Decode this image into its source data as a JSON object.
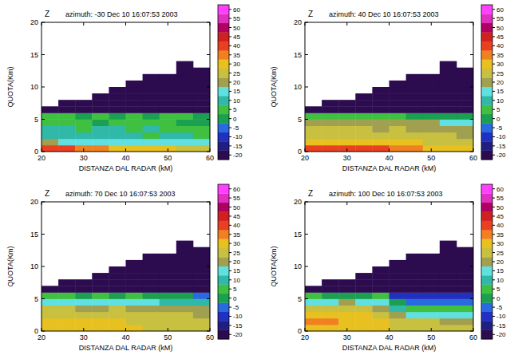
{
  "chart_data": [
    {
      "type": "heatmap",
      "annotation": "Z",
      "title": "azimuth: -30 Dec 10 16:07:53 2003",
      "x_label": "DISTANZA DAL RADAR (kM)",
      "y_label": "QUOTA(Km)",
      "xlim": [
        20,
        60
      ],
      "ylim": [
        0,
        20
      ],
      "xticks": [
        20,
        30,
        40,
        50,
        60
      ],
      "yticks": [
        0,
        5,
        10,
        15,
        20
      ],
      "x": [
        22,
        26,
        30,
        34,
        38,
        42,
        46,
        50,
        54,
        58
      ],
      "y": [
        0.5,
        1.5,
        2.5,
        3.5,
        4.5,
        5.5,
        6.5,
        7.5,
        8.5,
        9.5,
        10.5,
        11.5,
        12.5,
        13.5
      ],
      "cells": [
        [
          40,
          40,
          35,
          35,
          30,
          30,
          30,
          30,
          25,
          25
        ],
        [
          20,
          18,
          15,
          15,
          15,
          15,
          15,
          15,
          15,
          15
        ],
        [
          10,
          10,
          10,
          10,
          10,
          10,
          5,
          10,
          10,
          5
        ],
        [
          10,
          10,
          5,
          10,
          10,
          5,
          10,
          5,
          5,
          5
        ],
        [
          5,
          5,
          5,
          0,
          5,
          5,
          5,
          5,
          0,
          0
        ],
        [
          5,
          5,
          0,
          5,
          0,
          5,
          0,
          5,
          5,
          0
        ],
        [
          -20,
          -20,
          -20,
          -20,
          -20,
          -20,
          -20,
          -20,
          -20,
          -20
        ],
        [
          null,
          -20,
          -20,
          -20,
          -20,
          -20,
          -20,
          -20,
          -20,
          -20
        ],
        [
          null,
          null,
          null,
          -20,
          -20,
          -20,
          -20,
          -20,
          -20,
          -20
        ],
        [
          null,
          null,
          null,
          null,
          -20,
          -20,
          -20,
          -20,
          -20,
          -20
        ],
        [
          null,
          null,
          null,
          null,
          null,
          -20,
          -20,
          -20,
          -20,
          -20
        ],
        [
          null,
          null,
          null,
          null,
          null,
          null,
          -20,
          -20,
          -20,
          -20
        ],
        [
          null,
          null,
          null,
          null,
          null,
          null,
          null,
          null,
          -20,
          -20
        ],
        [
          null,
          null,
          null,
          null,
          null,
          null,
          null,
          null,
          -20,
          null
        ]
      ],
      "colorbar_range": [
        -22.5,
        62.5
      ],
      "colorbar_ticks": [
        -20,
        -15,
        -10,
        -5,
        0,
        5,
        10,
        15,
        20,
        25,
        30,
        35,
        40,
        45,
        50,
        55,
        60
      ]
    },
    {
      "type": "heatmap",
      "annotation": "Z",
      "title": "azimuth: 40 Dec 10 16:07:53 2003",
      "x_label": "DISTANZA DAL RADAR (kM)",
      "y_label": "QUOTA(Km)",
      "xlim": [
        20,
        60
      ],
      "ylim": [
        0,
        20
      ],
      "xticks": [
        20,
        30,
        40,
        50,
        60
      ],
      "yticks": [
        0,
        5,
        10,
        15,
        20
      ],
      "x": [
        22,
        26,
        30,
        34,
        38,
        42,
        46,
        50,
        54,
        58
      ],
      "y": [
        0.5,
        1.5,
        2.5,
        3.5,
        4.5,
        5.5,
        6.5,
        7.5,
        8.5,
        9.5,
        10.5,
        11.5,
        12.5,
        13.5
      ],
      "cells": [
        [
          40,
          40,
          40,
          40,
          40,
          35,
          35,
          30,
          30,
          30
        ],
        [
          30,
          30,
          30,
          30,
          30,
          30,
          30,
          25,
          25,
          25
        ],
        [
          25,
          25,
          25,
          25,
          25,
          25,
          25,
          25,
          25,
          20
        ],
        [
          25,
          25,
          25,
          25,
          20,
          25,
          20,
          20,
          20,
          20
        ],
        [
          20,
          20,
          20,
          20,
          20,
          20,
          20,
          20,
          15,
          15
        ],
        [
          5,
          5,
          5,
          5,
          5,
          5,
          0,
          0,
          0,
          0
        ],
        [
          -20,
          -20,
          -20,
          -20,
          -20,
          -20,
          -20,
          -20,
          -20,
          -20
        ],
        [
          null,
          -20,
          -20,
          -20,
          -20,
          -20,
          -20,
          -20,
          -20,
          -20
        ],
        [
          null,
          null,
          null,
          -20,
          -20,
          -20,
          -20,
          -20,
          -20,
          -20
        ],
        [
          null,
          null,
          null,
          null,
          -20,
          -20,
          -20,
          -20,
          -20,
          -20
        ],
        [
          null,
          null,
          null,
          null,
          null,
          -20,
          -20,
          -20,
          -20,
          -20
        ],
        [
          null,
          null,
          null,
          null,
          null,
          null,
          -20,
          -20,
          -20,
          -20
        ],
        [
          null,
          null,
          null,
          null,
          null,
          null,
          null,
          null,
          -20,
          -20
        ],
        [
          null,
          null,
          null,
          null,
          null,
          null,
          null,
          null,
          -20,
          null
        ]
      ],
      "colorbar_range": [
        -22.5,
        62.5
      ],
      "colorbar_ticks": [
        -20,
        -15,
        -10,
        -5,
        0,
        5,
        10,
        15,
        20,
        25,
        30,
        35,
        40,
        45,
        50,
        55,
        60
      ]
    },
    {
      "type": "heatmap",
      "annotation": "Z",
      "title": "azimuth: 70 Dec 10 16:07:53 2003",
      "x_label": "DISTANZA DAL RADAR (kM)",
      "y_label": "QUOTA(Km)",
      "xlim": [
        20,
        60
      ],
      "ylim": [
        0,
        20
      ],
      "xticks": [
        20,
        30,
        40,
        50,
        60
      ],
      "yticks": [
        0,
        5,
        10,
        15,
        20
      ],
      "x": [
        22,
        26,
        30,
        34,
        38,
        42,
        46,
        50,
        54,
        58
      ],
      "y": [
        0.5,
        1.5,
        2.5,
        3.5,
        4.5,
        5.5,
        6.5,
        7.5,
        8.5,
        9.5,
        10.5,
        11.5,
        12.5,
        13.5
      ],
      "cells": [
        [
          30,
          30,
          30,
          30,
          30,
          30,
          25,
          25,
          25,
          25
        ],
        [
          30,
          30,
          30,
          30,
          30,
          25,
          25,
          25,
          25,
          25
        ],
        [
          25,
          25,
          25,
          25,
          25,
          25,
          25,
          25,
          25,
          20
        ],
        [
          25,
          25,
          20,
          20,
          25,
          20,
          20,
          20,
          20,
          20
        ],
        [
          15,
          15,
          15,
          15,
          15,
          15,
          15,
          10,
          10,
          10
        ],
        [
          5,
          5,
          0,
          5,
          0,
          5,
          0,
          0,
          0,
          -5
        ],
        [
          -20,
          -20,
          -20,
          -20,
          -20,
          -20,
          -20,
          -20,
          -20,
          -20
        ],
        [
          null,
          -20,
          -20,
          -20,
          -20,
          -20,
          -20,
          -20,
          -20,
          -20
        ],
        [
          null,
          null,
          null,
          -20,
          -20,
          -20,
          -20,
          -20,
          -20,
          -20
        ],
        [
          null,
          null,
          null,
          null,
          -20,
          -20,
          -20,
          -20,
          -20,
          -20
        ],
        [
          null,
          null,
          null,
          null,
          null,
          -20,
          -20,
          -20,
          -20,
          -20
        ],
        [
          null,
          null,
          null,
          null,
          null,
          null,
          -20,
          -20,
          -20,
          -20
        ],
        [
          null,
          null,
          null,
          null,
          null,
          null,
          null,
          null,
          -20,
          -20
        ],
        [
          null,
          null,
          null,
          null,
          null,
          null,
          null,
          null,
          -20,
          null
        ]
      ],
      "colorbar_range": [
        -22.5,
        62.5
      ],
      "colorbar_ticks": [
        -20,
        -15,
        -10,
        -5,
        0,
        5,
        10,
        15,
        20,
        25,
        30,
        35,
        40,
        45,
        50,
        55,
        60
      ]
    },
    {
      "type": "heatmap",
      "annotation": "Z",
      "title": "azimuth: 100 Dec 10 16:07:53 2003",
      "x_label": "DISTANZA DAL RADAR (kM)",
      "y_label": "QUOTA(Km)",
      "xlim": [
        20,
        60
      ],
      "ylim": [
        0,
        20
      ],
      "xticks": [
        20,
        30,
        40,
        50,
        60
      ],
      "yticks": [
        0,
        5,
        10,
        15,
        20
      ],
      "x": [
        22,
        26,
        30,
        34,
        38,
        42,
        46,
        50,
        54,
        58
      ],
      "y": [
        0.5,
        1.5,
        2.5,
        3.5,
        4.5,
        5.5,
        6.5,
        7.5,
        8.5,
        9.5,
        10.5,
        11.5,
        12.5,
        13.5
      ],
      "cells": [
        [
          30,
          30,
          30,
          30,
          30,
          25,
          25,
          25,
          25,
          25
        ],
        [
          35,
          35,
          30,
          30,
          30,
          25,
          25,
          25,
          20,
          20
        ],
        [
          30,
          30,
          30,
          30,
          25,
          20,
          15,
          15,
          15,
          15
        ],
        [
          25,
          25,
          25,
          25,
          20,
          10,
          5,
          5,
          5,
          5
        ],
        [
          15,
          15,
          20,
          15,
          15,
          0,
          -5,
          -5,
          -5,
          -5
        ],
        [
          5,
          0,
          0,
          0,
          5,
          -10,
          -10,
          -10,
          -10,
          -10
        ],
        [
          -20,
          -20,
          -20,
          -20,
          -20,
          -20,
          -20,
          -20,
          -20,
          -20
        ],
        [
          null,
          -20,
          -20,
          -20,
          -20,
          -20,
          -20,
          -20,
          -20,
          -20
        ],
        [
          null,
          null,
          null,
          -20,
          -20,
          -20,
          -20,
          -20,
          -20,
          -20
        ],
        [
          null,
          null,
          null,
          null,
          -20,
          -20,
          -20,
          -20,
          -20,
          -20
        ],
        [
          null,
          null,
          null,
          null,
          null,
          -20,
          -20,
          -20,
          -20,
          -20
        ],
        [
          null,
          null,
          null,
          null,
          null,
          null,
          -20,
          -20,
          -20,
          -20
        ],
        [
          null,
          null,
          null,
          null,
          null,
          null,
          null,
          null,
          -20,
          -20
        ],
        [
          null,
          null,
          null,
          null,
          null,
          null,
          null,
          null,
          -20,
          null
        ]
      ],
      "colorbar_range": [
        -22.5,
        62.5
      ],
      "colorbar_ticks": [
        -20,
        -15,
        -10,
        -5,
        0,
        5,
        10,
        15,
        20,
        25,
        30,
        35,
        40,
        45,
        50,
        55,
        60
      ]
    }
  ]
}
